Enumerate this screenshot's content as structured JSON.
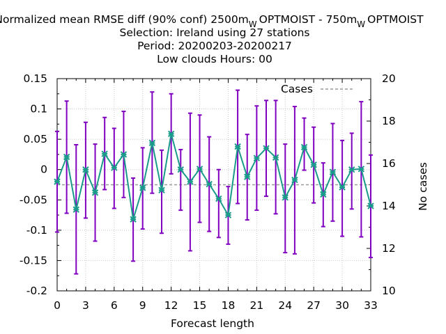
{
  "chart_data": {
    "type": "line",
    "title_lines": [
      "Normalized mean RMSE diff (90% conf) 2500m",
      "Selection: Ireland using    27 stations",
      "Period: 20200203-20200217",
      "Low clouds   Hours:  00"
    ],
    "title_sub_w": "W",
    "title_mid": "OPTMOIST - 750m",
    "title_end": "OPTMOIST",
    "xlabel": "Forecast length",
    "y2label": "No cases",
    "xlim": [
      0,
      33
    ],
    "ylim": [
      -0.2,
      0.15
    ],
    "y2lim": [
      10,
      20
    ],
    "xticks": [
      "0",
      "3",
      "6",
      "9",
      "12",
      "15",
      "18",
      "21",
      "24",
      "27",
      "30",
      "33"
    ],
    "yticks": [
      "0.15",
      "0.1",
      "0.05",
      "0",
      "-0.05",
      "-0.1",
      "-0.15",
      "-0.2"
    ],
    "y2ticks": [
      "20",
      "18",
      "16",
      "14",
      "12",
      "10"
    ],
    "grid": true,
    "legend": {
      "position": "top-right",
      "label": "Cases"
    },
    "colors": {
      "series": "#1a9a8a",
      "errorbar": "#8000c0",
      "cases": "#999999",
      "grid": "#c8c8c8"
    },
    "x": [
      0,
      1,
      2,
      3,
      4,
      5,
      6,
      7,
      8,
      9,
      10,
      11,
      12,
      13,
      14,
      15,
      16,
      17,
      18,
      19,
      20,
      21,
      22,
      23,
      24,
      25,
      26,
      27,
      28,
      29,
      30,
      31,
      32,
      33
    ],
    "series": [
      {
        "values": [
          -0.02,
          0.021,
          -0.066,
          0.0,
          -0.038,
          0.026,
          0.003,
          0.025,
          -0.082,
          -0.03,
          0.044,
          -0.034,
          0.059,
          0.0,
          -0.02,
          0.001,
          -0.024,
          -0.048,
          -0.075,
          0.038,
          -0.012,
          0.019,
          0.035,
          0.02,
          -0.046,
          -0.017,
          0.037,
          0.008,
          -0.041,
          -0.004,
          -0.029,
          0.0,
          0.001,
          -0.06
        ],
        "err_low": [
          -0.103,
          -0.072,
          -0.172,
          -0.08,
          -0.118,
          -0.033,
          -0.064,
          -0.046,
          -0.151,
          -0.098,
          -0.039,
          -0.105,
          -0.007,
          -0.067,
          -0.134,
          -0.087,
          -0.102,
          -0.112,
          -0.123,
          -0.056,
          -0.083,
          -0.067,
          -0.044,
          -0.073,
          -0.137,
          -0.139,
          -0.001,
          -0.055,
          -0.094,
          -0.085,
          -0.11,
          -0.065,
          -0.111,
          -0.145
        ],
        "err_high": [
          0.063,
          0.113,
          0.041,
          0.078,
          0.042,
          0.086,
          0.068,
          0.096,
          -0.014,
          0.036,
          0.128,
          0.032,
          0.125,
          0.033,
          0.093,
          0.09,
          0.054,
          0.0,
          -0.028,
          0.131,
          0.058,
          0.105,
          0.114,
          0.114,
          0.042,
          0.104,
          0.085,
          0.07,
          0.011,
          0.076,
          0.048,
          0.06,
          0.112,
          0.024
        ]
      }
    ],
    "cases": 15.0
  }
}
